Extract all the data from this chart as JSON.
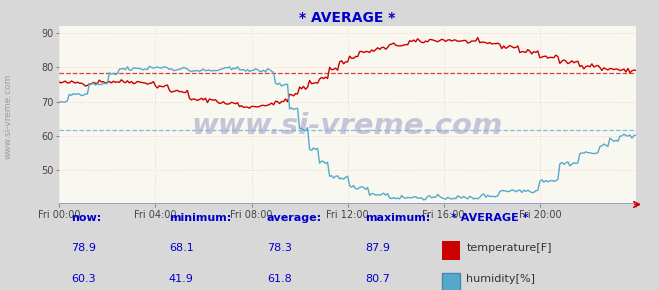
{
  "title": "* AVERAGE *",
  "title_color": "#0000cc",
  "bg_color": "#d8d8d8",
  "plot_bg_color": "#f8f8f0",
  "watermark": "www.si-vreme.com",
  "watermark_color": "#aaaacc",
  "sidebar_text": "www.si-vreme.com",
  "xlim": [
    0,
    288
  ],
  "ylim": [
    40,
    92
  ],
  "yticks": [
    50,
    60,
    70,
    80,
    90
  ],
  "xticks": [
    0,
    48,
    96,
    144,
    192,
    240,
    288
  ],
  "xtick_labels": [
    "Fri 00:00",
    "Fri 04:00",
    "Fri 08:00",
    "Fri 12:00",
    "Fri 16:00",
    "Fri 20:00",
    ""
  ],
  "temp_color": "#cc0000",
  "humidity_color": "#55aacc",
  "temp_avg": 78.3,
  "humidity_avg": 61.8,
  "temp_now": 78.9,
  "temp_min": 68.1,
  "temp_max": 87.9,
  "hum_now": 60.3,
  "hum_min": 41.9,
  "hum_avg": 61.8,
  "hum_max": 80.7,
  "grid_minor_color": "#ffcccc",
  "grid_major_color": "#ffffff",
  "axis_line_color": "#8888cc",
  "arrow_color": "#cc0000"
}
